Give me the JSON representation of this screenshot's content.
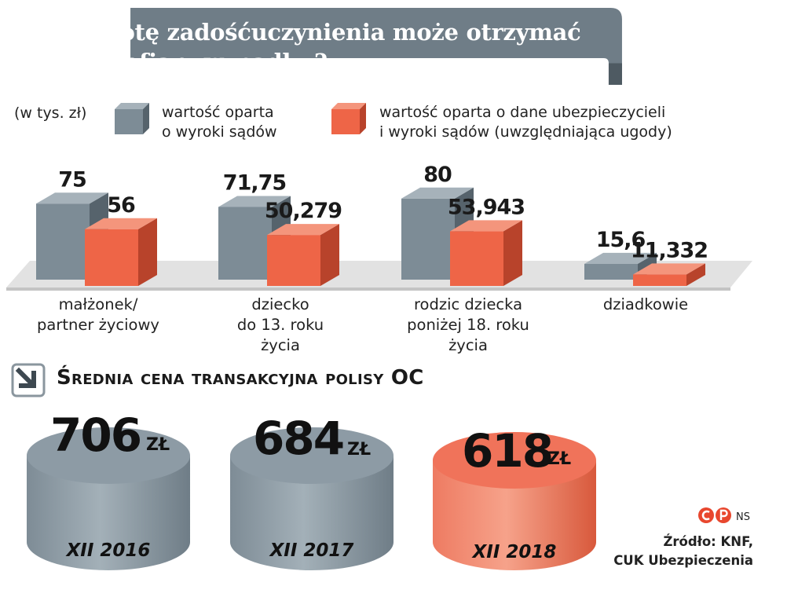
{
  "title": "Jaką kwotę zadośćuczynienia może otrzymać rodzina ofiary wypadku?",
  "title_line1": "Jaką kwotę zadośćuczynienia może otrzymać",
  "title_line2": "rodzina ofiary wypadku?",
  "unit_note": "(w tys. zł)",
  "legend": {
    "series1_line1": "wartość oparta",
    "series1_line2": "o wyroki sądów",
    "series2_line1": "wartość oparta o dane ubezpieczycieli",
    "series2_line2": "i wyroki sądów (uwzględniająca ugody)"
  },
  "colors": {
    "banner": "#6f7d87",
    "grey_bar": "#7d8c96",
    "orange_bar": "#ee6547",
    "floor": "#dcdcdc",
    "light_cylinder": "#8d9ba5",
    "accent_cylinder": "#f0735a"
  },
  "chart_data": [
    {
      "type": "bar",
      "title": "Jaką kwotę zadośćuczynienia może otrzymać rodzina ofiary wypadku?",
      "ylabel": "(w tys. zł)",
      "categories": [
        "małżonek/ partner życiowy",
        "dziecko do 13. roku życia",
        "rodzic dziecka poniżej 18. roku życia",
        "dziadkowie"
      ],
      "category_lines": [
        [
          "małżonek/",
          "partner życiowy"
        ],
        [
          "dziecko",
          "do 13. roku",
          "życia"
        ],
        [
          "rodzic dziecka",
          "poniżej 18. roku",
          "życia"
        ],
        [
          "dziadkowie"
        ]
      ],
      "series": [
        {
          "name": "wartość oparta o wyroki sądów",
          "values": [
            75,
            71.75,
            80,
            15.6
          ],
          "labels": [
            "75",
            "71,75",
            "80",
            "15,6"
          ]
        },
        {
          "name": "wartość oparta o dane ubezpieczycieli i wyroki sądów (uwzględniająca ugody)",
          "values": [
            56,
            50.279,
            53.943,
            11.332
          ],
          "labels": [
            "56",
            "50,279",
            "53,943",
            "11,332"
          ]
        }
      ]
    },
    {
      "type": "bar",
      "title": "Średnia cena transakcyjna polisy OC",
      "categories": [
        "XII 2016",
        "XII 2017",
        "XII 2018"
      ],
      "values": [
        706,
        684,
        618
      ],
      "labels": [
        "706",
        "684",
        "618"
      ],
      "unit": "ZŁ"
    }
  ],
  "section2": {
    "title_first": "Ś",
    "title_rest": "rednia cena transakcyjna polisy OC",
    "unit": "ZŁ",
    "cylinders": [
      {
        "value": "706",
        "year": "XII 2016",
        "color": "grey"
      },
      {
        "value": "684",
        "year": "XII 2017",
        "color": "grey"
      },
      {
        "value": "618",
        "year": "XII 2018",
        "color": "orange"
      }
    ]
  },
  "logo_text": "NS",
  "source_line1": "Źródło: KNF,",
  "source_line2": "CUK Ubezpieczenia"
}
